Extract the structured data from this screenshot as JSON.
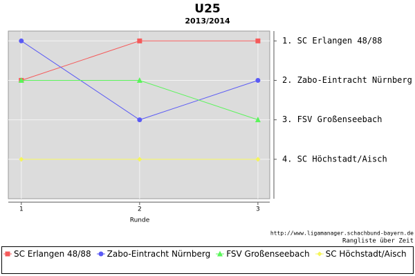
{
  "chart_data": {
    "type": "line",
    "title": "U25",
    "subtitle": "2013/2014",
    "x_label": "Runde",
    "x": [
      1,
      2,
      3
    ],
    "xlim": [
      0.89,
      3.1
    ],
    "xticks": [
      1,
      2,
      3
    ],
    "ylim": [
      0.75,
      5
    ],
    "y_inverted": true,
    "y_axis_side": "right",
    "yticks": [
      {
        "value": 1,
        "label": "1. SC Erlangen 48/88"
      },
      {
        "value": 2,
        "label": "2. Zabo-Eintracht Nürnberg"
      },
      {
        "value": 3,
        "label": "3. FSV Großenseebach"
      },
      {
        "value": 4,
        "label": "4. SC Höchstadt/Aisch"
      }
    ],
    "grid": true,
    "series": [
      {
        "name": "SC Erlangen 48/88",
        "color": "#f55a5a",
        "marker": "square",
        "values": [
          2,
          1,
          1
        ]
      },
      {
        "name": "Zabo-Eintracht Nürnberg",
        "color": "#5a5af5",
        "marker": "circle",
        "values": [
          1,
          3,
          2
        ]
      },
      {
        "name": "FSV Großenseebach",
        "color": "#5af55a",
        "marker": "triangle",
        "values": [
          2,
          2,
          3
        ]
      },
      {
        "name": "SC Höchstadt/Aisch",
        "color": "#f5f55a",
        "marker": "diamond",
        "values": [
          4,
          4,
          4
        ]
      }
    ],
    "source": "http://www.ligamanager.schachbund-bayern.de",
    "footer": "Rangliste über Zeit",
    "legend": "bottom"
  }
}
